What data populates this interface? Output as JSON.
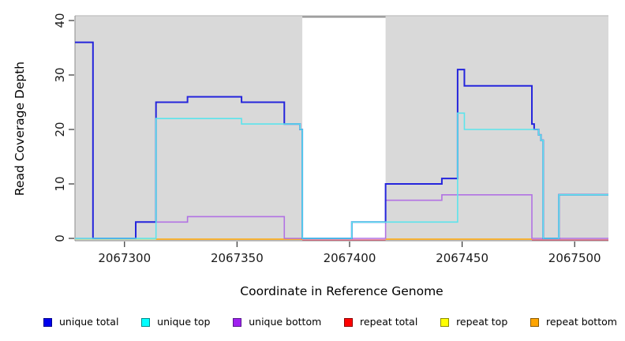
{
  "chart_data": {
    "type": "line",
    "subtype": "step-coverage",
    "xlabel": "Coordinate in Reference Genome",
    "ylabel": "Read Coverage Depth",
    "xlim": [
      2067278,
      2067515
    ],
    "ylim": [
      0,
      40
    ],
    "x_ticks": [
      2067300,
      2067350,
      2067400,
      2067450,
      2067500
    ],
    "y_ticks": [
      0,
      10,
      20,
      30,
      40
    ],
    "grid": false,
    "legend_position": "bottom",
    "panel": {
      "background": "#d9d9d9",
      "top_border": "#c6c6c6",
      "axis_color": "#8c8c8c",
      "tick_color": "#333333",
      "highlight_band": {
        "x0": 2067379,
        "x1": 2067416,
        "color": "#ffffff",
        "top_border": "#8a8a8a"
      }
    },
    "series": [
      {
        "name": "unique total",
        "line_color": "#2525dc",
        "line_width": 2,
        "steps": [
          [
            2067278,
            36
          ],
          [
            2067286,
            0
          ],
          [
            2067305,
            3
          ],
          [
            2067314,
            25
          ],
          [
            2067328,
            26
          ],
          [
            2067352,
            25
          ],
          [
            2067371,
            21
          ],
          [
            2067378,
            20
          ],
          [
            2067379,
            0
          ],
          [
            2067401,
            3
          ],
          [
            2067416,
            10
          ],
          [
            2067441,
            11
          ],
          [
            2067448,
            31
          ],
          [
            2067451,
            28
          ],
          [
            2067481,
            21
          ],
          [
            2067482,
            20
          ],
          [
            2067484,
            19
          ],
          [
            2067485,
            18
          ],
          [
            2067486,
            0
          ],
          [
            2067493,
            8
          ],
          [
            2067515,
            8
          ]
        ]
      },
      {
        "name": "unique top",
        "line_color": "#5ce4ec",
        "line_width": 1.6,
        "steps": [
          [
            2067278,
            0
          ],
          [
            2067314,
            22
          ],
          [
            2067352,
            21
          ],
          [
            2067378,
            20
          ],
          [
            2067379,
            0
          ],
          [
            2067401,
            3
          ],
          [
            2067448,
            23
          ],
          [
            2067451,
            20
          ],
          [
            2067484,
            19
          ],
          [
            2067485,
            18
          ],
          [
            2067486,
            0
          ],
          [
            2067493,
            8
          ],
          [
            2067515,
            8
          ]
        ]
      },
      {
        "name": "unique bottom",
        "line_color": "#b272e3",
        "line_width": 1.6,
        "steps": [
          [
            2067278,
            0
          ],
          [
            2067305,
            3
          ],
          [
            2067328,
            4
          ],
          [
            2067371,
            0
          ],
          [
            2067416,
            7
          ],
          [
            2067441,
            8
          ],
          [
            2067481,
            0
          ],
          [
            2067515,
            0
          ]
        ]
      },
      {
        "name": "repeat total",
        "line_color": "#e0506e",
        "line_width": 1.3,
        "value": 0,
        "visible_segments": [
          [
            2067379,
            2067416
          ],
          [
            2067481,
            2067515
          ]
        ]
      },
      {
        "name": "repeat top",
        "line_color": "#bfe19b",
        "line_width": 1.5,
        "value": 0,
        "visible_segments": [
          [
            2067278,
            2067314
          ]
        ]
      },
      {
        "name": "repeat bottom",
        "line_color": "#ffa500",
        "line_width": 1.5,
        "value": 0,
        "visible_segments": [
          [
            2067314,
            2067379
          ],
          [
            2067416,
            2067481
          ]
        ]
      }
    ]
  },
  "legend": {
    "items": [
      {
        "label": "unique total",
        "color": "#0000ee",
        "border": "#00008b"
      },
      {
        "label": "unique top",
        "color": "#00ffff",
        "border": "#008b8b"
      },
      {
        "label": "unique bottom",
        "color": "#a020f0",
        "border": "#551a8b"
      },
      {
        "label": "repeat total",
        "color": "#ff0000",
        "border": "#8b0000"
      },
      {
        "label": "repeat top",
        "color": "#ffff00",
        "border": "#8b8b00"
      },
      {
        "label": "repeat bottom",
        "color": "#ffa500",
        "border": "#8b5a00"
      }
    ]
  }
}
